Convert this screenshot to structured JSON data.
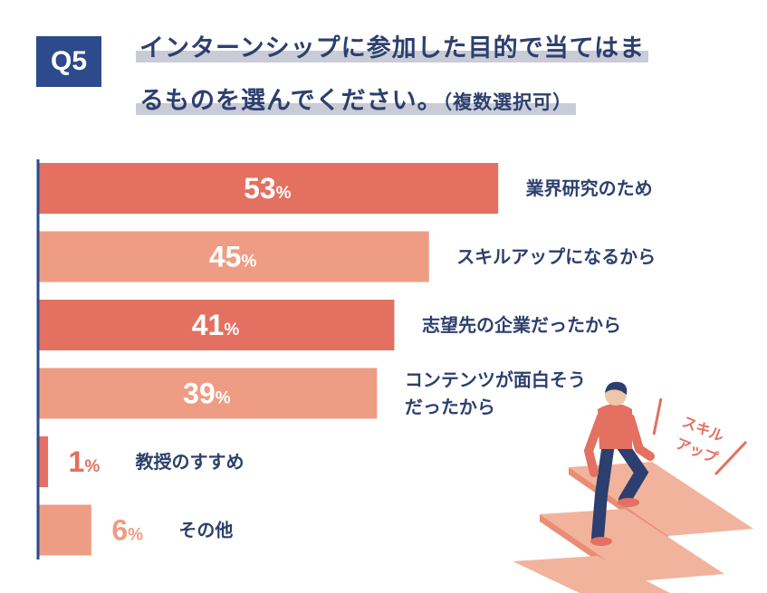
{
  "header": {
    "badge": "Q5",
    "title_line1": "インターンシップに参加した目的で当てはま",
    "title_line2": "るものを選んでください。",
    "title_note": "（複数選択可）"
  },
  "chart_data": {
    "type": "bar",
    "orientation": "horizontal",
    "title": "インターンシップに参加した目的で当てはまるものを選んでください。（複数選択可）",
    "unit": "%",
    "categories": [
      "業界研究のため",
      "スキルアップになるから",
      "志望先の企業だったから",
      "コンテンツが面白そうだったから",
      "教授のすすめ",
      "その他"
    ],
    "category_lines": [
      [
        "業界研究のため"
      ],
      [
        "スキルアップになるから"
      ],
      [
        "志望先の企業だったから"
      ],
      [
        "コンテンツが面白そう",
        "だったから"
      ],
      [
        "教授のすすめ"
      ],
      [
        "その他"
      ]
    ],
    "values": [
      53,
      45,
      41,
      39,
      1,
      6
    ],
    "xlim": [
      0,
      100
    ],
    "colors": {
      "dark": "#e37060",
      "light": "#ee9c83",
      "axis": "#2c4a8c",
      "label": "#2c3f6e"
    }
  },
  "illustration": {
    "caption_line1": "スキル",
    "caption_line2": "アップ",
    "icon": "person-climbing-stairs-icon"
  }
}
